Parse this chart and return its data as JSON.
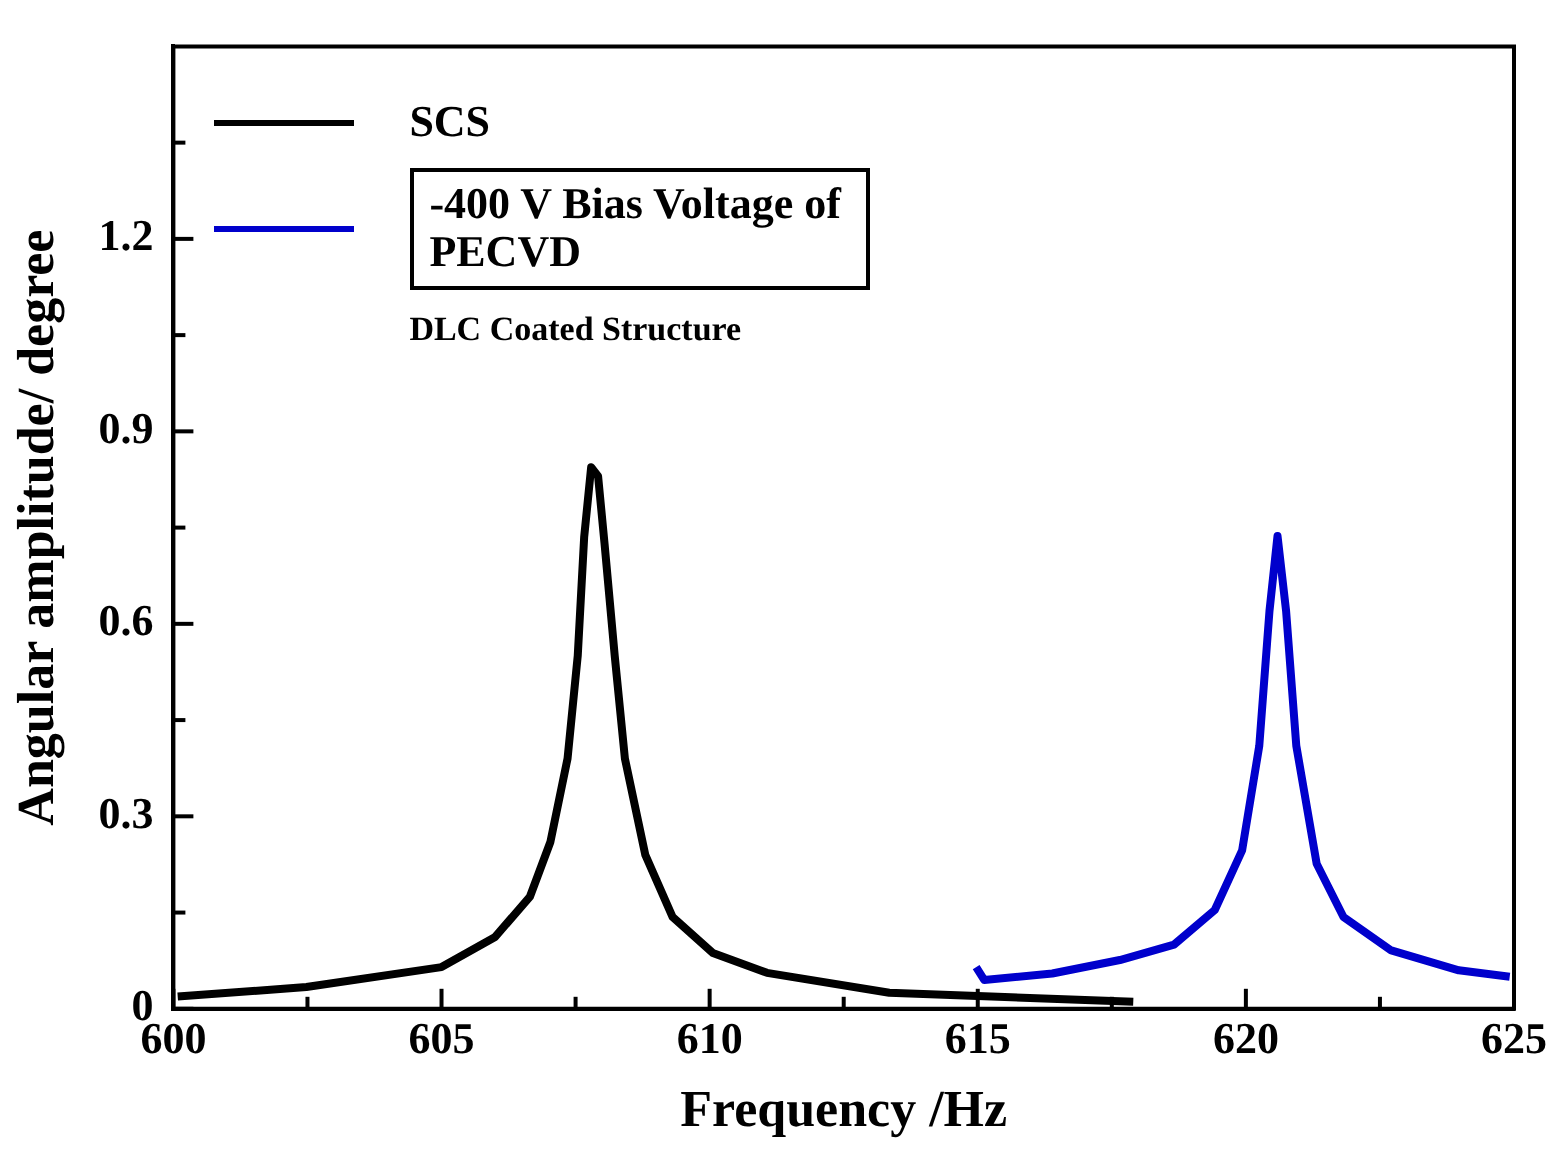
{
  "chart_data": {
    "type": "line",
    "xlabel": "Frequency /Hz",
    "ylabel": "Angular amplitude/ degree",
    "legend": "top left",
    "xlim": [
      600,
      625
    ],
    "xticks": [
      600,
      {
        "value": 602.5,
        "label": null
      },
      605,
      {
        "value": 607.5,
        "label": null
      },
      610,
      {
        "value": 612.5,
        "label": null
      },
      615,
      {
        "value": 617.5,
        "label": null
      },
      620,
      {
        "value": 622.5,
        "label": null
      },
      625
    ],
    "ylim": [
      0,
      1.5
    ],
    "yticks": [
      0,
      {
        "value": 0.15,
        "label": null
      },
      0.3,
      {
        "value": 0.45,
        "label": null
      },
      0.6,
      {
        "value": 0.75,
        "label": null
      },
      0.9,
      {
        "value": 1.05,
        "label": null
      },
      1.2,
      {
        "value": 1.35,
        "label": null
      }
    ],
    "series": [
      {
        "name": "SCS",
        "color": "#000000",
        "x": [
          600.08,
          602.48,
          605.0,
          606.0,
          606.65,
          607.03,
          607.35,
          607.54,
          607.66,
          607.79,
          607.92,
          608.04,
          608.23,
          608.42,
          608.8,
          609.31,
          610.06,
          611.07,
          613.35,
          615.25,
          617.9
        ],
        "values": [
          0.019,
          0.034,
          0.065,
          0.112,
          0.175,
          0.26,
          0.39,
          0.55,
          0.735,
          0.844,
          0.83,
          0.725,
          0.55,
          0.39,
          0.24,
          0.143,
          0.087,
          0.056,
          0.025,
          0.019,
          0.011
        ]
      },
      {
        "name": "-400 V Bias Voltage of PECVD",
        "color": "#0000cc",
        "x": [
          614.97,
          615.12,
          616.39,
          617.65,
          618.66,
          619.42,
          619.93,
          620.25,
          620.44,
          620.59,
          620.75,
          620.94,
          621.32,
          621.82,
          622.71,
          623.97,
          624.92
        ],
        "values": [
          0.065,
          0.045,
          0.055,
          0.076,
          0.1,
          0.154,
          0.247,
          0.41,
          0.62,
          0.737,
          0.62,
          0.41,
          0.226,
          0.143,
          0.091,
          0.06,
          0.05
        ]
      }
    ],
    "annotations": [
      "DLC Coated Structure"
    ]
  }
}
